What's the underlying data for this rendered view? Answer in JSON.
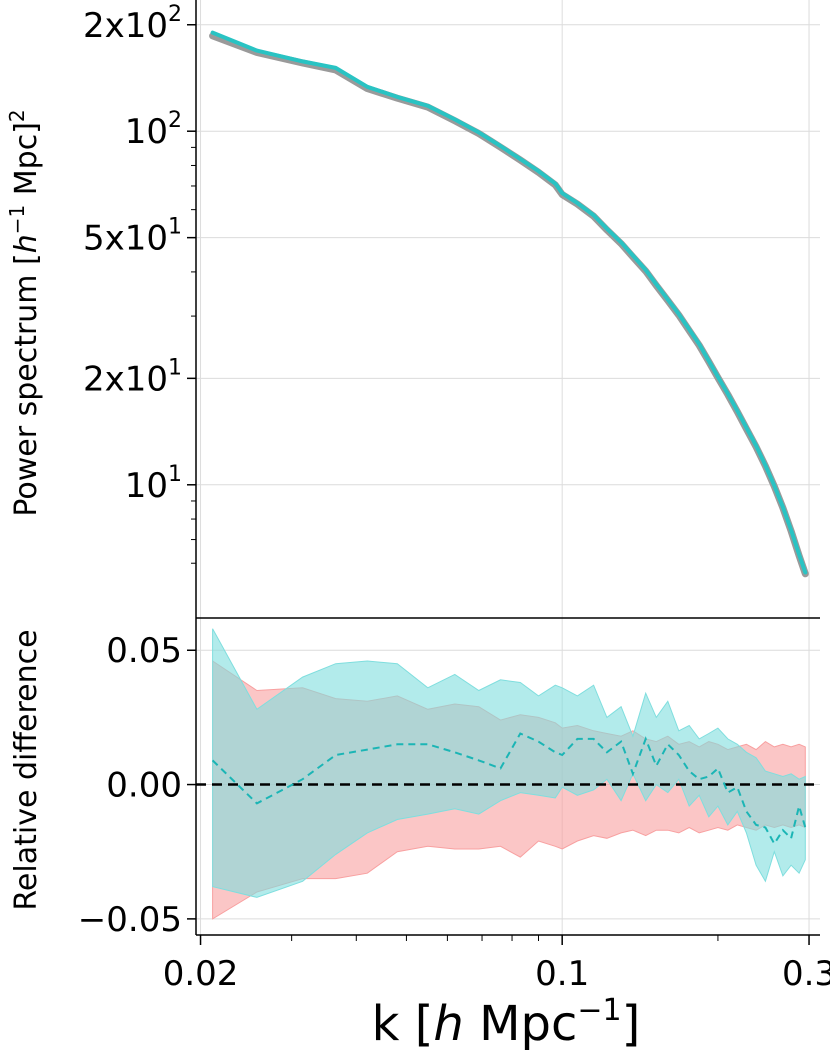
{
  "chart_data": [
    {
      "type": "line",
      "xscale": "log",
      "yscale": "log",
      "xlim": [
        0.0196,
        0.315
      ],
      "ylim": [
        4.2,
        235
      ],
      "grid": true,
      "ylabel": {
        "main": "Power spectrum [",
        "italic": "h",
        "sup": "−1",
        "mid": " Mpc]",
        "sup2": "2"
      },
      "yticks": [
        {
          "value": 200,
          "mantissa": "2x10",
          "exp": "2"
        },
        {
          "value": 100,
          "mantissa": "10",
          "exp": "2"
        },
        {
          "value": 50,
          "mantissa": "5x10",
          "exp": "1"
        },
        {
          "value": 20,
          "mantissa": "2x10",
          "exp": "1"
        },
        {
          "value": 10,
          "mantissa": "10",
          "exp": "1"
        }
      ],
      "x": [
        0.0211,
        0.0257,
        0.0315,
        0.0365,
        0.042,
        0.048,
        0.055,
        0.062,
        0.069,
        0.076,
        0.083,
        0.09,
        0.097,
        0.1,
        0.107,
        0.115,
        0.122,
        0.13,
        0.137,
        0.145,
        0.152,
        0.16,
        0.168,
        0.176,
        0.184,
        0.192,
        0.2,
        0.209,
        0.218,
        0.227,
        0.237,
        0.247,
        0.257,
        0.267,
        0.277,
        0.287,
        0.295
      ],
      "series": [
        {
          "color": "#9a9a9a",
          "values": [
            186,
            167,
            156,
            149,
            132,
            124,
            117,
            107,
            98.5,
            90.1,
            82.9,
            76.5,
            70.5,
            66.2,
            62.2,
            57.5,
            52.6,
            48.1,
            44.1,
            40.2,
            36.6,
            33.2,
            30.2,
            27.3,
            24.8,
            22.3,
            20.1,
            18.0,
            16.1,
            14.4,
            12.8,
            11.3,
            9.9,
            8.6,
            7.4,
            6.3,
            5.6
          ]
        },
        {
          "color": "#29c3c3",
          "values": [
            190,
            169,
            157.5,
            151,
            133.5,
            125,
            118,
            108,
            99.2,
            90.8,
            83.4,
            77.1,
            71.1,
            66.8,
            62.6,
            57.9,
            53.0,
            48.5,
            44.5,
            40.5,
            36.9,
            33.4,
            30.4,
            27.5,
            25.0,
            22.4,
            20.2,
            18.1,
            16.2,
            14.5,
            12.9,
            11.35,
            9.95,
            8.65,
            7.45,
            6.35,
            5.65
          ]
        }
      ]
    },
    {
      "type": "area",
      "xscale": "log",
      "xlim": [
        0.0196,
        0.315
      ],
      "ylim": [
        -0.056,
        0.062
      ],
      "grid": true,
      "ylabel": "Relative difference",
      "xlabel": {
        "main": "k [",
        "italic": "h",
        "mid": " Mpc",
        "sup": "−1",
        "end": "]"
      },
      "yticks": [
        "0.05",
        "0.00",
        "−0.05"
      ],
      "ytick_values": [
        0.05,
        0.0,
        -0.05
      ],
      "xticks": [
        "0.02",
        "0.1",
        "0.3"
      ],
      "xtick_values": [
        0.02,
        0.1,
        0.3
      ],
      "x": [
        0.0211,
        0.0257,
        0.0315,
        0.0365,
        0.042,
        0.048,
        0.055,
        0.062,
        0.069,
        0.076,
        0.083,
        0.09,
        0.097,
        0.1,
        0.107,
        0.115,
        0.122,
        0.13,
        0.137,
        0.145,
        0.152,
        0.16,
        0.168,
        0.176,
        0.184,
        0.192,
        0.2,
        0.209,
        0.218,
        0.227,
        0.237,
        0.247,
        0.257,
        0.267,
        0.277,
        0.287,
        0.295
      ],
      "reference_line": 0.0,
      "bands": [
        {
          "color": "#f8a0a0",
          "upper": [
            0.046,
            0.035,
            0.036,
            0.032,
            0.031,
            0.033,
            0.028,
            0.03,
            0.029,
            0.024,
            0.026,
            0.025,
            0.023,
            0.021,
            0.022,
            0.02,
            0.019,
            0.018,
            0.02,
            0.017,
            0.016,
            0.018,
            0.015,
            0.016,
            0.014,
            0.016,
            0.015,
            0.013,
            0.014,
            0.015,
            0.013,
            0.016,
            0.014,
            0.015,
            0.014,
            0.015,
            0.014
          ],
          "lower": [
            -0.05,
            -0.04,
            -0.035,
            -0.035,
            -0.033,
            -0.025,
            -0.023,
            -0.024,
            -0.024,
            -0.023,
            -0.027,
            -0.021,
            -0.023,
            -0.024,
            -0.021,
            -0.019,
            -0.02,
            -0.018,
            -0.017,
            -0.019,
            -0.017,
            -0.017,
            -0.018,
            -0.016,
            -0.018,
            -0.017,
            -0.016,
            -0.017,
            -0.015,
            -0.016,
            -0.017,
            -0.015,
            -0.016,
            -0.015,
            -0.016,
            -0.015,
            -0.016
          ]
        },
        {
          "color": "#7fdede",
          "upper": [
            0.058,
            0.028,
            0.04,
            0.045,
            0.046,
            0.045,
            0.036,
            0.041,
            0.035,
            0.039,
            0.038,
            0.033,
            0.037,
            0.036,
            0.033,
            0.037,
            0.025,
            0.029,
            0.018,
            0.034,
            0.025,
            0.031,
            0.02,
            0.022,
            0.017,
            0.019,
            0.021,
            0.017,
            0.015,
            0.012,
            0.01,
            0.005,
            0.004,
            0.003,
            0.004,
            0.002,
            0.003
          ],
          "lower": [
            -0.038,
            -0.042,
            -0.036,
            -0.026,
            -0.018,
            -0.013,
            -0.011,
            -0.009,
            -0.011,
            -0.006,
            -0.003,
            -0.004,
            -0.005,
            -0.001,
            -0.004,
            -0.002,
            0.002,
            -0.006,
            0.004,
            -0.006,
            0.0,
            -0.003,
            0.002,
            -0.008,
            -0.004,
            -0.012,
            -0.008,
            -0.015,
            -0.01,
            -0.018,
            -0.03,
            -0.036,
            -0.025,
            -0.034,
            -0.03,
            -0.033,
            -0.028
          ]
        }
      ],
      "series": [
        {
          "color": "#1bb5b5",
          "dashed": true,
          "values": [
            0.009,
            -0.007,
            0.002,
            0.011,
            0.013,
            0.015,
            0.015,
            0.012,
            0.009,
            0.006,
            0.019,
            0.016,
            0.012,
            0.011,
            0.017,
            0.017,
            0.012,
            0.016,
            0.004,
            0.017,
            0.007,
            0.015,
            0.011,
            0.005,
            0.002,
            0.003,
            0.006,
            -0.003,
            -0.001,
            -0.01,
            -0.015,
            -0.016,
            -0.022,
            -0.017,
            -0.02,
            -0.008,
            -0.016
          ]
        }
      ]
    }
  ]
}
